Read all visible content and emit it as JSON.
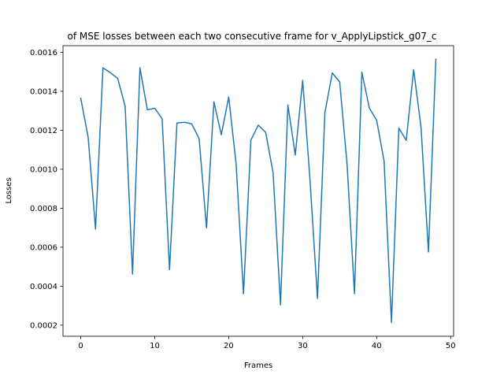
{
  "chart_data": {
    "type": "line",
    "title": "of MSE losses between each two consecutive frame for v_ApplyLipstick_g07_c",
    "xlabel": "Frames",
    "ylabel": "Losses",
    "xlim": [
      -2.4,
      50.4
    ],
    "ylim": [
      0.000143,
      0.001634
    ],
    "xticks": [
      0,
      10,
      20,
      30,
      40,
      50
    ],
    "xtick_labels": [
      "0",
      "10",
      "20",
      "30",
      "40",
      "50"
    ],
    "yticks": [
      0.0002,
      0.0004,
      0.0006,
      0.0008,
      0.001,
      0.0012,
      0.0014,
      0.0016
    ],
    "ytick_labels": [
      "0.0002",
      "0.0004",
      "0.0006",
      "0.0008",
      "0.0010",
      "0.0012",
      "0.0014",
      "0.0016"
    ],
    "grid": false,
    "series": [
      {
        "color": "#1f77b4",
        "x": [
          0,
          1,
          2,
          3,
          4,
          5,
          6,
          7,
          8,
          9,
          10,
          11,
          12,
          13,
          14,
          15,
          16,
          17,
          18,
          19,
          20,
          21,
          22,
          23,
          24,
          25,
          26,
          27,
          28,
          29,
          30,
          31,
          32,
          33,
          34,
          35,
          36,
          37,
          38,
          39,
          40,
          41,
          42,
          43,
          44,
          45,
          46,
          47,
          48
        ],
        "values": [
          0.001364,
          0.001164,
          0.000693,
          0.001521,
          0.001495,
          0.001466,
          0.001323,
          0.000462,
          0.001521,
          0.001305,
          0.001313,
          0.001259,
          0.000485,
          0.001237,
          0.001241,
          0.001233,
          0.001157,
          0.000699,
          0.001346,
          0.001177,
          0.001371,
          0.001028,
          0.000361,
          0.00115,
          0.001226,
          0.001189,
          0.000982,
          0.000304,
          0.00133,
          0.001073,
          0.001456,
          0.000939,
          0.000337,
          0.00129,
          0.001494,
          0.001448,
          0.001026,
          0.000361,
          0.001498,
          0.001315,
          0.001251,
          0.001042,
          0.000214,
          0.001211,
          0.001148,
          0.001511,
          0.001214,
          0.000576,
          0.001565
        ]
      }
    ]
  }
}
